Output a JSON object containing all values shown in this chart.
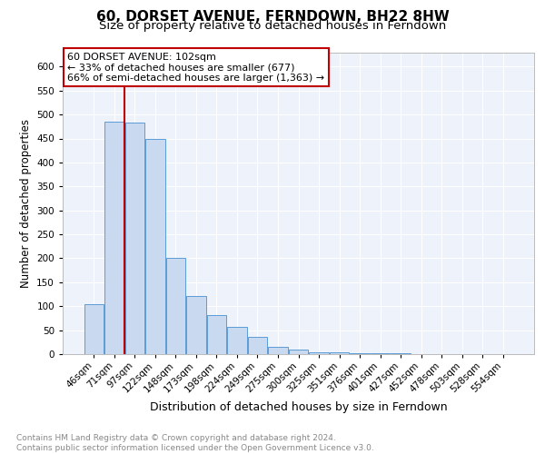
{
  "title": "60, DORSET AVENUE, FERNDOWN, BH22 8HW",
  "subtitle": "Size of property relative to detached houses in Ferndown",
  "xlabel": "Distribution of detached houses by size in Ferndown",
  "ylabel": "Number of detached properties",
  "bar_color": "#c8d9f0",
  "bar_edge_color": "#5b9bd5",
  "categories": [
    "46sqm",
    "71sqm",
    "97sqm",
    "122sqm",
    "148sqm",
    "173sqm",
    "198sqm",
    "224sqm",
    "249sqm",
    "275sqm",
    "300sqm",
    "325sqm",
    "351sqm",
    "376sqm",
    "401sqm",
    "427sqm",
    "452sqm",
    "478sqm",
    "503sqm",
    "528sqm",
    "554sqm"
  ],
  "values": [
    105,
    485,
    483,
    450,
    200,
    122,
    82,
    57,
    36,
    16,
    9,
    4,
    3,
    2,
    1,
    1,
    0,
    0,
    0,
    0,
    0
  ],
  "ylim": [
    0,
    630
  ],
  "yticks": [
    0,
    50,
    100,
    150,
    200,
    250,
    300,
    350,
    400,
    450,
    500,
    550,
    600
  ],
  "property_line_bar_index": 1,
  "property_line_color": "#c00000",
  "annotation_text": "60 DORSET AVENUE: 102sqm\n← 33% of detached houses are smaller (677)\n66% of semi-detached houses are larger (1,363) →",
  "annotation_box_color": "#c00000",
  "footnote": "Contains HM Land Registry data © Crown copyright and database right 2024.\nContains public sector information licensed under the Open Government Licence v3.0.",
  "bg_color": "#eef2fa",
  "grid_color": "#ffffff",
  "title_fontsize": 11,
  "subtitle_fontsize": 9.5,
  "xlabel_fontsize": 9,
  "ylabel_fontsize": 8.5,
  "tick_fontsize": 7.5,
  "annotation_fontsize": 8
}
